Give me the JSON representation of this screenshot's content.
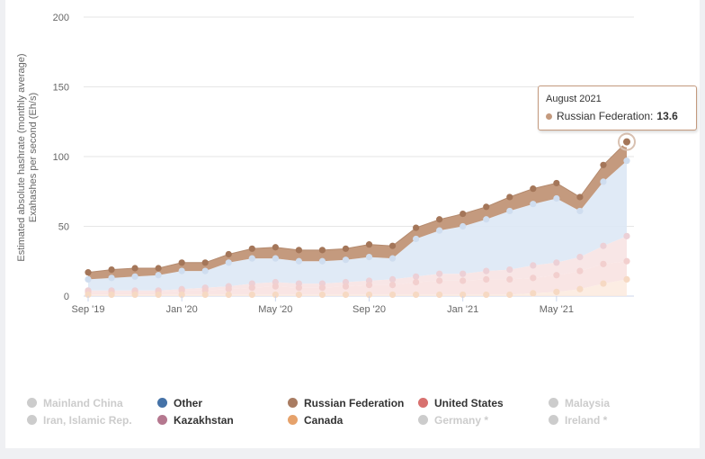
{
  "chart_data": {
    "type": "area",
    "stacking": "normal",
    "ylabel_lines": [
      "Estimated absolute hashrate (monthly average)",
      "Exahashes per second (Eh/s)"
    ],
    "ylim": [
      0,
      200
    ],
    "y_ticks": [
      0,
      50,
      100,
      150,
      200
    ],
    "x_tick_labels": [
      "Sep '19",
      "Jan '20",
      "May '20",
      "Sep '20",
      "Jan '21",
      "May '21"
    ],
    "x": [
      "2019-09",
      "2019-10",
      "2019-11",
      "2019-12",
      "2020-01",
      "2020-02",
      "2020-03",
      "2020-04",
      "2020-05",
      "2020-06",
      "2020-07",
      "2020-08",
      "2020-09",
      "2020-10",
      "2020-11",
      "2020-12",
      "2021-01",
      "2021-02",
      "2021-03",
      "2021-04",
      "2021-05",
      "2021-06",
      "2021-07",
      "2021-08"
    ],
    "stack_top_totals": [
      22,
      24,
      26,
      26,
      30,
      30,
      36,
      38,
      42,
      39,
      40,
      41,
      43,
      43,
      57,
      64,
      70,
      75,
      81,
      84,
      91,
      78,
      101,
      113
    ],
    "series": [
      {
        "name": "Canada",
        "values": [
          1,
          1,
          1,
          1,
          1,
          1,
          1,
          1,
          1,
          1,
          1,
          1,
          1,
          1,
          1,
          1,
          1,
          1,
          1,
          2,
          3,
          5,
          9,
          12
        ]
      },
      {
        "name": "United States",
        "values": [
          2,
          2,
          2,
          2,
          3,
          3,
          4,
          5,
          6,
          5,
          5,
          6,
          7,
          7,
          9,
          10,
          10,
          11,
          11,
          11,
          12,
          13,
          14,
          13
        ]
      },
      {
        "name": "Kazakhstan",
        "values": [
          1,
          1,
          1,
          1,
          1,
          2,
          2,
          3,
          3,
          3,
          3,
          3,
          3,
          4,
          4,
          5,
          5,
          6,
          7,
          9,
          9,
          10,
          13,
          18
        ]
      },
      {
        "name": "Other",
        "values": [
          8,
          9,
          10,
          11,
          13,
          12,
          17,
          18,
          17,
          16,
          16,
          16,
          17,
          15,
          27,
          31,
          34,
          37,
          42,
          44,
          46,
          33,
          46,
          54
        ]
      },
      {
        "name": "Russian Federation",
        "values": [
          5,
          6,
          6,
          5,
          6,
          6,
          6,
          7,
          8,
          8,
          8,
          8,
          9,
          9,
          8,
          8,
          9,
          9,
          10,
          11,
          11,
          10,
          12,
          13.6
        ]
      }
    ],
    "colors": {
      "Russian Federation": "#c49a7e",
      "Russian Federation Dark": "#a47659",
      "Other": "#4572a7",
      "United States": "#d8716f",
      "Kazakhstan": "#b5788f",
      "Canada": "#e6a26b",
      "off": "#cccccc"
    },
    "tooltip": {
      "title": "August 2021",
      "series": "Russian Federation:",
      "value": "13.6"
    }
  },
  "legend": {
    "items": [
      {
        "label": "Mainland China",
        "color": "#cccccc",
        "active": false
      },
      {
        "label": "Other",
        "color": "#4572a7",
        "active": true
      },
      {
        "label": "Russian Federation",
        "color": "#a97c62",
        "active": true
      },
      {
        "label": "United States",
        "color": "#d8716f",
        "active": true
      },
      {
        "label": "Malaysia",
        "color": "#cccccc",
        "active": false
      },
      {
        "label": "Iran, Islamic Rep.",
        "color": "#cccccc",
        "active": false
      },
      {
        "label": "Kazakhstan",
        "color": "#b5788f",
        "active": true
      },
      {
        "label": "Canada",
        "color": "#e6a26b",
        "active": true
      },
      {
        "label": "Germany *",
        "color": "#cccccc",
        "active": false
      },
      {
        "label": "Ireland *",
        "color": "#cccccc",
        "active": false
      }
    ]
  }
}
